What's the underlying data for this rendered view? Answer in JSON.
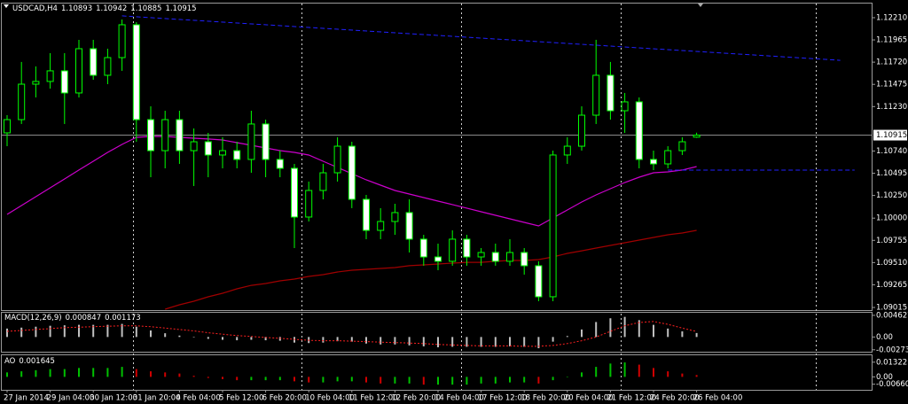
{
  "chart_data": [
    {
      "type": "candlestick",
      "title": "USDCAD,H4",
      "categories": [
        "27 Jan 2014",
        null,
        null,
        "29 Jan 04:00",
        null,
        null,
        "30 Jan 12:00",
        null,
        null,
        "31 Jan 20:00",
        null,
        null,
        "4 Feb 04:00",
        null,
        null,
        "5 Feb 12:00",
        null,
        null,
        "6 Feb 20:00",
        null,
        null,
        "10 Feb 04:00",
        null,
        null,
        "11 Feb 12:00",
        null,
        null,
        "12 Feb 20:00",
        null,
        null,
        "14 Feb 04:00",
        null,
        null,
        "17 Feb 12:00",
        null,
        null,
        "18 Feb 20:00",
        null,
        null,
        "20 Feb 04:00",
        null,
        null,
        "21 Feb 12:00",
        null,
        null,
        "24 Feb 20:00",
        null,
        null,
        "26 Feb 04:00"
      ],
      "open": [
        1.1094,
        1.11086,
        1.11477,
        1.11507,
        1.11624,
        1.1138,
        1.11868,
        1.11575,
        1.1177,
        1.12132,
        1.11086,
        1.10744,
        1.11086,
        1.10744,
        1.10842,
        1.10696,
        1.10744,
        1.10647,
        1.11038,
        1.10647,
        1.10549,
        1.10012,
        1.10305,
        1.105,
        1.10793,
        1.10207,
        1.09865,
        1.09963,
        1.10061,
        1.09768,
        1.09572,
        1.09524,
        1.09768,
        1.09572,
        1.09621,
        1.09524,
        1.09621,
        1.09475,
        1.09133,
        1.10696,
        1.10793,
        1.11135,
        1.11575,
        1.11184,
        1.11282,
        1.10647,
        1.10598,
        1.10744,
        1.10893
      ],
      "high": [
        1.11135,
        1.11722,
        1.11673,
        1.11819,
        1.11819,
        1.11966,
        1.11966,
        1.11868,
        1.1219,
        1.12161,
        1.11233,
        1.11184,
        1.11184,
        1.10989,
        1.1094,
        1.10891,
        1.10842,
        1.11184,
        1.11086,
        1.10744,
        1.10598,
        1.10403,
        1.10598,
        1.10891,
        1.10842,
        1.10256,
        1.1011,
        1.10158,
        1.10207,
        1.09816,
        1.09719,
        1.09865,
        1.09816,
        1.0967,
        1.09719,
        1.09768,
        1.0967,
        1.09524,
        1.10744,
        1.10891,
        1.11233,
        1.11966,
        1.11722,
        1.1138,
        1.11331,
        1.10744,
        1.10793,
        1.10891,
        1.10942
      ],
      "low": [
        1.10793,
        1.11038,
        1.11331,
        1.11428,
        1.11038,
        1.11331,
        1.11526,
        1.11477,
        1.11624,
        1.10842,
        1.10451,
        1.10549,
        1.10598,
        1.10354,
        1.10451,
        1.10549,
        1.10549,
        1.105,
        1.10451,
        1.10451,
        1.0967,
        1.09963,
        1.10207,
        1.10403,
        1.1011,
        1.09768,
        1.09768,
        1.09816,
        1.09621,
        1.09475,
        1.09426,
        1.09475,
        1.09475,
        1.09475,
        1.09475,
        1.09475,
        1.09377,
        1.09084,
        1.09084,
        1.10598,
        1.10744,
        1.11038,
        1.11086,
        1.1094,
        1.10549,
        1.1053,
        1.10549,
        1.10696,
        1.10885
      ],
      "close": [
        1.11086,
        1.11477,
        1.11507,
        1.11624,
        1.1138,
        1.11868,
        1.11575,
        1.1177,
        1.12132,
        1.11086,
        1.10744,
        1.11086,
        1.10744,
        1.10842,
        1.10696,
        1.10744,
        1.10647,
        1.11038,
        1.10647,
        1.10549,
        1.10012,
        1.10305,
        1.105,
        1.10793,
        1.10207,
        1.09865,
        1.09963,
        1.10061,
        1.09768,
        1.09572,
        1.09524,
        1.09768,
        1.09572,
        1.09621,
        1.09524,
        1.09621,
        1.09475,
        1.09133,
        1.10696,
        1.10793,
        1.11135,
        1.11575,
        1.11184,
        1.11282,
        1.10647,
        1.10598,
        1.10744,
        1.10842,
        1.10915
      ],
      "wick_color": "#00ff00",
      "up_color": "#000000",
      "down_color": "#ffffff",
      "overlays": [
        {
          "color": "#cc00cc",
          "values": [
            1.10041,
            1.10139,
            1.10236,
            1.10334,
            1.10432,
            1.1053,
            1.10627,
            1.10725,
            1.10813,
            1.10891,
            1.10901,
            1.10901,
            1.10891,
            1.10881,
            1.10872,
            1.10862,
            1.10832,
            1.10803,
            1.10774,
            1.10744,
            1.10725,
            1.10696,
            1.10627,
            1.10559,
            1.1049,
            1.10422,
            1.10363,
            1.10305,
            1.10266,
            1.10227,
            1.10188,
            1.10149,
            1.1011,
            1.1007,
            1.10031,
            1.09992,
            1.09953,
            1.09914,
            1.10002,
            1.1009,
            1.10178,
            1.10256,
            1.10324,
            1.10393,
            1.10451,
            1.105,
            1.1051,
            1.1053,
            1.10569
          ]
        },
        {
          "color": "#a00000",
          "values": [
            null,
            null,
            null,
            null,
            null,
            null,
            null,
            null,
            null,
            null,
            null,
            1.08996,
            1.09045,
            1.09084,
            1.09133,
            1.09172,
            1.0922,
            1.09259,
            1.09279,
            1.09308,
            1.09328,
            1.09357,
            1.09377,
            1.09406,
            1.09426,
            1.09435,
            1.09445,
            1.09455,
            1.09475,
            1.09484,
            1.09494,
            1.09504,
            1.09513,
            1.09513,
            1.09524,
            1.09533,
            1.09533,
            1.09543,
            1.09572,
            1.09611,
            1.0964,
            1.0967,
            1.09699,
            1.09728,
            1.09758,
            1.09787,
            1.09816,
            1.09836,
            1.09865
          ]
        }
      ],
      "trendlines": [
        {
          "color": "#2020ff",
          "x": [
            8,
            58
          ],
          "y": [
            1.1223,
            1.1174
          ]
        },
        {
          "color": "#2020ff",
          "x": [
            46,
            59
          ],
          "y": [
            1.1053,
            1.1053
          ]
        }
      ],
      "ylim": [
        1.08986,
        1.12366
      ],
      "yticks": [
        {
          "value": 1.1221,
          "label": "1.12210"
        },
        1.11965,
        {
          "value": 1.1172,
          "label": "1.11720"
        },
        1.11475,
        {
          "value": 1.1123,
          "label": "1.11230"
        },
        {
          "value": 1.1074,
          "label": "1.10740"
        },
        1.10495,
        {
          "value": 1.1025,
          "label": "1.10250"
        },
        {
          "value": 1.1,
          "label": "1.10000"
        },
        1.09755,
        {
          "value": 1.0951,
          "label": "1.09510"
        },
        1.09265,
        1.09015
      ]
    },
    {
      "type": "bar",
      "title": "MACD(12,26,9)",
      "series": [
        {
          "color": "#c0c0c0",
          "values": [
            0.0018,
            0.002,
            0.0022,
            0.0024,
            0.0025,
            0.0026,
            0.0026,
            0.0026,
            0.0028,
            0.0022,
            0.0014,
            0.0008,
            0.0003,
            -0.0001,
            -0.0004,
            -0.0006,
            -0.0007,
            -0.0006,
            -0.0007,
            -0.0008,
            -0.0012,
            -0.0013,
            -0.0012,
            -0.0009,
            -0.001,
            -0.0014,
            -0.0016,
            -0.0016,
            -0.0018,
            -0.002,
            -0.0022,
            -0.0021,
            -0.0021,
            -0.0021,
            -0.0021,
            -0.002,
            -0.0021,
            -0.0024,
            -0.001,
            0.0002,
            0.0016,
            0.0032,
            0.004,
            0.0043,
            0.0036,
            0.0026,
            0.0018,
            0.0012,
            0.000847
          ]
        },
        {
          "type": "line",
          "color": "#ff2020",
          "values": [
            0.0012,
            0.0014,
            0.0016,
            0.0018,
            0.002,
            0.0021,
            0.0022,
            0.0023,
            0.0024,
            0.0024,
            0.0022,
            0.0019,
            0.0016,
            0.0013,
            0.0009,
            0.0006,
            0.0003,
            0.0001,
            -0.0001,
            -0.0003,
            -0.0005,
            -0.0007,
            -0.0008,
            -0.0008,
            -0.0009,
            -0.001,
            -0.0011,
            -0.0012,
            -0.0013,
            -0.0014,
            -0.0016,
            -0.0017,
            -0.0018,
            -0.0019,
            -0.0019,
            -0.0019,
            -0.002,
            -0.002,
            -0.0018,
            -0.0014,
            -0.0008,
            0.0,
            0.0012,
            0.0024,
            0.0031,
            0.0033,
            0.0027,
            0.0019,
            0.001173
          ]
        }
      ],
      "ylim": [
        -0.00315,
        0.00518
      ],
      "yticks": [
        0.004627,
        {
          "value": 0,
          "label": "0.00"
        },
        -0.002731
      ]
    },
    {
      "type": "bar",
      "title": "AO",
      "values": [
        0.004,
        0.005,
        0.006,
        0.007,
        0.007,
        0.008,
        0.008,
        0.008,
        0.009,
        0.007,
        0.005,
        0.004,
        0.003,
        0.001,
        -0.001,
        -0.002,
        -0.003,
        -0.003,
        -0.003,
        -0.003,
        -0.004,
        -0.005,
        -0.005,
        -0.004,
        -0.004,
        -0.005,
        -0.006,
        -0.006,
        -0.006,
        -0.007,
        -0.007,
        -0.007,
        -0.007,
        -0.006,
        -0.006,
        -0.005,
        -0.005,
        -0.006,
        -0.003,
        0.0,
        0.004,
        0.009,
        0.012,
        0.013,
        0.011,
        0.008,
        0.005,
        0.003,
        0.001645
      ],
      "up_color": "#00c000",
      "down_color": "#d00000",
      "ylim": [
        -0.01167,
        0.01944
      ],
      "yticks": [
        0.01322,
        {
          "value": 0,
          "label": "0.00"
        },
        {
          "value": -0.0066,
          "label": "-0.00660"
        }
      ]
    }
  ]
}
